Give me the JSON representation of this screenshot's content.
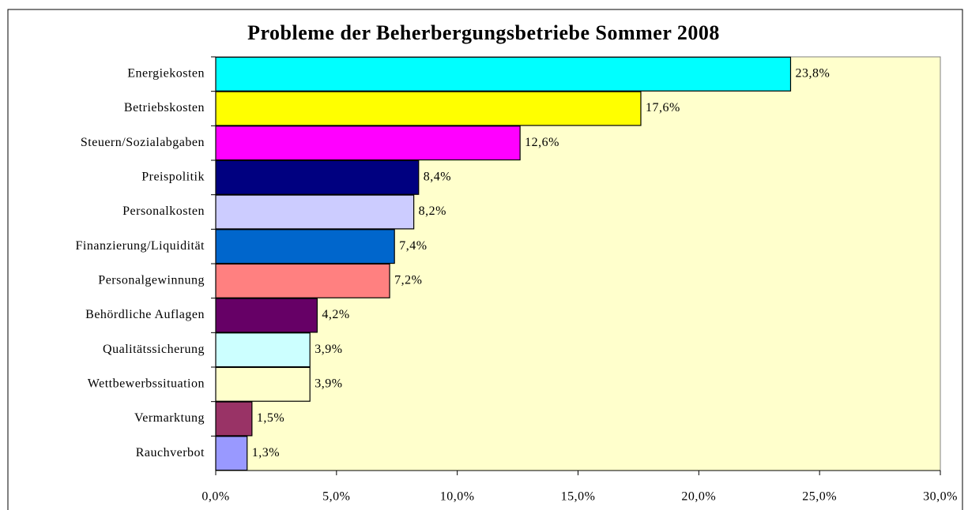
{
  "chart_data": {
    "type": "bar",
    "orientation": "horizontal",
    "title": "Probleme der Beherbergungsbetriebe Sommer 2008",
    "categories": [
      "Energiekosten",
      "Betriebskosten",
      "Steuern/Sozialabgaben",
      "Preispolitik",
      "Personalkosten",
      "Finanzierung/Liquidität",
      "Personalgewinnung",
      "Behördliche Auflagen",
      "Qualitätssicherung",
      "Wettbewerbssituation",
      "Vermarktung",
      "Rauchverbot"
    ],
    "values": [
      23.8,
      17.6,
      12.6,
      8.4,
      8.2,
      7.4,
      7.2,
      4.2,
      3.9,
      3.9,
      1.5,
      1.3
    ],
    "value_labels": [
      "23,8%",
      "17,6%",
      "12,6%",
      "8,4%",
      "8,2%",
      "7,4%",
      "7,2%",
      "4,2%",
      "3,9%",
      "3,9%",
      "1,5%",
      "1,3%"
    ],
    "colors": [
      "#00ffff",
      "#ffff00",
      "#ff00ff",
      "#000080",
      "#ccccff",
      "#0066cc",
      "#ff8080",
      "#660066",
      "#ccffff",
      "#ffffcc",
      "#993366",
      "#9999ff"
    ],
    "xlim": [
      0,
      30
    ],
    "xticks": [
      {
        "value": 0,
        "label": "0,0%"
      },
      {
        "value": 5,
        "label": "5,0%"
      },
      {
        "value": 10,
        "label": "10,0%"
      },
      {
        "value": 15,
        "label": "15,0%"
      },
      {
        "value": 20,
        "label": "20,0%"
      },
      {
        "value": 25,
        "label": "25,0%"
      },
      {
        "value": 30,
        "label": "30,0%"
      }
    ],
    "plot_background": "#ffffcc"
  }
}
